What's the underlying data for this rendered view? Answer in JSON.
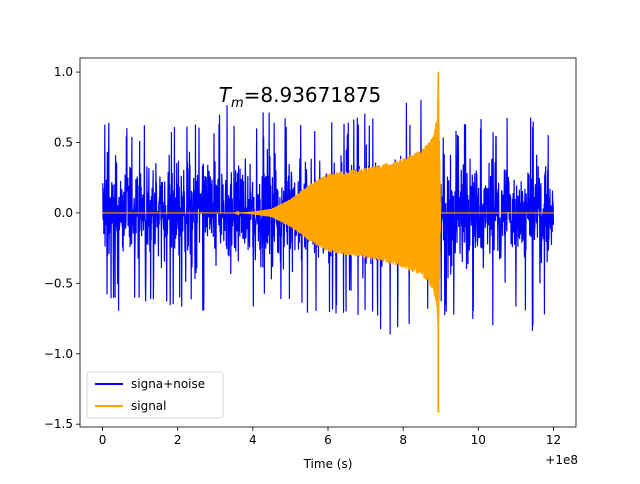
{
  "chart_data": {
    "type": "line",
    "title": "",
    "annotation": {
      "symbol": "T",
      "subscript": "m",
      "text": "=8.93671875"
    },
    "xlabel": "Time (s)",
    "ylabel": "",
    "x_offset_label": "+1e8",
    "xlim": [
      -0.6,
      12.6
    ],
    "ylim": [
      -1.52,
      1.1
    ],
    "xticks": [
      0,
      2,
      4,
      6,
      8,
      10,
      12
    ],
    "xtick_labels": [
      "0",
      "2",
      "4",
      "6",
      "8",
      "10",
      "12"
    ],
    "yticks": [
      -1.5,
      -1.0,
      -0.5,
      0.0,
      0.5,
      1.0
    ],
    "ytick_labels": [
      "−1.5",
      "−1.0",
      "−0.5",
      "0.0",
      "0.5",
      "1.0"
    ],
    "grid": false,
    "legend": {
      "location": "lower left",
      "entries": [
        "signa+noise",
        "signal"
      ]
    },
    "series": [
      {
        "name": "signa+noise",
        "color": "#0000ff",
        "x_range": [
          0,
          12
        ],
        "typical_amplitude": 0.3,
        "upper_spikes": [
          [
            0.0,
            0.72
          ],
          [
            0.5,
            0.6
          ],
          [
            1.0,
            0.62
          ],
          [
            1.5,
            0.66
          ],
          [
            2.0,
            0.6
          ],
          [
            2.5,
            0.63
          ],
          [
            3.0,
            0.64
          ],
          [
            3.2,
            0.82
          ],
          [
            3.5,
            0.7
          ],
          [
            4.0,
            0.68
          ],
          [
            4.4,
            0.75
          ],
          [
            5.0,
            0.66
          ],
          [
            5.5,
            0.6
          ],
          [
            6.0,
            0.7
          ],
          [
            6.5,
            0.64
          ],
          [
            7.0,
            0.72
          ],
          [
            7.5,
            0.7
          ],
          [
            8.0,
            0.78
          ],
          [
            8.5,
            0.82
          ],
          [
            9.0,
            0.62
          ],
          [
            9.5,
            0.64
          ],
          [
            10.0,
            0.7
          ],
          [
            10.5,
            0.62
          ],
          [
            11.0,
            0.83
          ],
          [
            11.5,
            0.66
          ],
          [
            12.0,
            0.6
          ]
        ],
        "lower_spikes": [
          [
            0.0,
            -0.62
          ],
          [
            0.5,
            -0.72
          ],
          [
            1.0,
            -0.7
          ],
          [
            1.5,
            -0.62
          ],
          [
            2.0,
            -0.7
          ],
          [
            2.5,
            -0.72
          ],
          [
            3.0,
            -0.68
          ],
          [
            3.7,
            -0.99
          ],
          [
            4.0,
            -0.7
          ],
          [
            4.5,
            -0.74
          ],
          [
            5.0,
            -0.66
          ],
          [
            5.5,
            -0.8
          ],
          [
            6.0,
            -0.72
          ],
          [
            6.5,
            -0.74
          ],
          [
            7.0,
            -0.72
          ],
          [
            7.5,
            -0.88
          ],
          [
            8.0,
            -0.84
          ],
          [
            8.5,
            -0.7
          ],
          [
            9.0,
            -0.72
          ],
          [
            9.5,
            -0.76
          ],
          [
            10.0,
            -0.78
          ],
          [
            10.5,
            -0.82
          ],
          [
            11.0,
            -0.72
          ],
          [
            11.5,
            -0.9
          ],
          [
            12.0,
            -0.74
          ]
        ]
      },
      {
        "name": "signal",
        "color": "#ffa500",
        "x": [
          0.0,
          3.5,
          4.0,
          4.5,
          5.0,
          5.5,
          6.0,
          6.5,
          7.0,
          7.5,
          8.0,
          8.5,
          8.8,
          8.9,
          8.93671875,
          9.0,
          12.0
        ],
        "amplitude_envelope": [
          0.0,
          0.0,
          0.01,
          0.03,
          0.1,
          0.2,
          0.28,
          0.3,
          0.32,
          0.35,
          0.39,
          0.45,
          0.55,
          0.7,
          1.0,
          0.0,
          0.0
        ],
        "peak_max": 1.0,
        "peak_min": -1.42,
        "peak_x": 8.93671875
      }
    ]
  }
}
